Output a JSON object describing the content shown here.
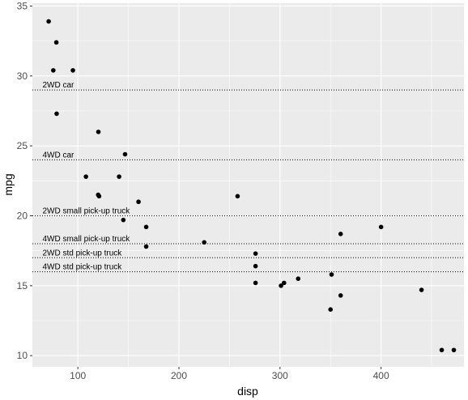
{
  "chart_data": {
    "type": "scatter",
    "xlabel": "disp",
    "ylabel": "mpg",
    "xlim": [
      55,
      482
    ],
    "ylim": [
      9.2,
      35.2
    ],
    "x_ticks": [
      100,
      200,
      300,
      400
    ],
    "y_ticks": [
      10,
      15,
      20,
      25,
      30,
      35
    ],
    "x_tick_labels": [
      "100",
      "200",
      "300",
      "400"
    ],
    "y_tick_labels": [
      "10",
      "15",
      "20",
      "25",
      "30",
      "35"
    ],
    "grid": true,
    "panel_background": "#ebebeb",
    "grid_color": "#ffffff",
    "point_color": "#000000",
    "reference_lines": [
      {
        "y": 29,
        "label": "2WD car"
      },
      {
        "y": 24,
        "label": "4WD car"
      },
      {
        "y": 20,
        "label": "2WD small pick-up truck"
      },
      {
        "y": 18,
        "label": "4WD small pick-up truck"
      },
      {
        "y": 17,
        "label": "2WD std pick-up truck"
      },
      {
        "y": 16,
        "label": "4WD std pick-up truck"
      }
    ],
    "points": [
      {
        "x": 71.1,
        "y": 33.9
      },
      {
        "x": 75.7,
        "y": 30.4
      },
      {
        "x": 78.7,
        "y": 32.4
      },
      {
        "x": 79.0,
        "y": 27.3
      },
      {
        "x": 95.1,
        "y": 30.4
      },
      {
        "x": 108.0,
        "y": 22.8
      },
      {
        "x": 120.1,
        "y": 21.5
      },
      {
        "x": 120.3,
        "y": 26.0
      },
      {
        "x": 121.0,
        "y": 21.4
      },
      {
        "x": 140.8,
        "y": 22.8
      },
      {
        "x": 145.0,
        "y": 19.7
      },
      {
        "x": 146.7,
        "y": 24.4
      },
      {
        "x": 160.0,
        "y": 21.0
      },
      {
        "x": 167.6,
        "y": 19.2
      },
      {
        "x": 167.6,
        "y": 17.8
      },
      {
        "x": 225.0,
        "y": 18.1
      },
      {
        "x": 258.0,
        "y": 21.4
      },
      {
        "x": 275.8,
        "y": 16.4
      },
      {
        "x": 275.8,
        "y": 17.3
      },
      {
        "x": 275.8,
        "y": 15.2
      },
      {
        "x": 301.0,
        "y": 15.0
      },
      {
        "x": 304.0,
        "y": 15.2
      },
      {
        "x": 318.0,
        "y": 15.5
      },
      {
        "x": 350.0,
        "y": 13.3
      },
      {
        "x": 351.0,
        "y": 15.8
      },
      {
        "x": 360.0,
        "y": 18.7
      },
      {
        "x": 360.0,
        "y": 14.3
      },
      {
        "x": 400.0,
        "y": 19.2
      },
      {
        "x": 440.0,
        "y": 14.7
      },
      {
        "x": 460.0,
        "y": 10.4
      },
      {
        "x": 472.0,
        "y": 10.4
      }
    ]
  }
}
